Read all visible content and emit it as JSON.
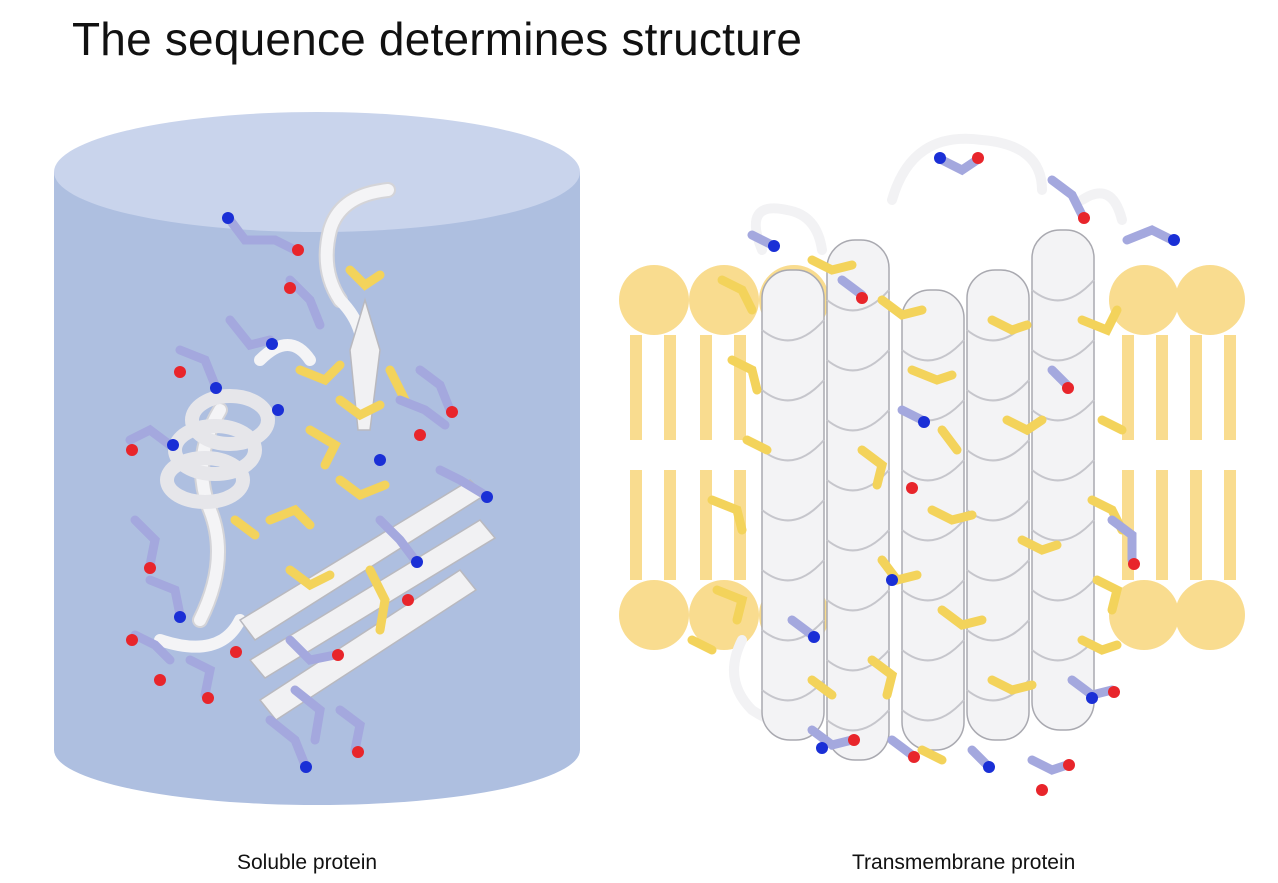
{
  "slide": {
    "title": "The sequence determines structure"
  },
  "figures": [
    {
      "caption": "Soluble protein"
    },
    {
      "caption": "Transmembrane protein"
    }
  ],
  "colors": {
    "cylinder_side": "#aebfe0",
    "cylinder_top": "#c9d4ec",
    "ribbon": "#f2f2f4",
    "hydrophobic_residue": "#f3d35b",
    "polar_residue": "#a4a8de",
    "oxygen": "#e8252b",
    "nitrogen": "#1a2fd6",
    "lipid": "#f9dc8f"
  }
}
